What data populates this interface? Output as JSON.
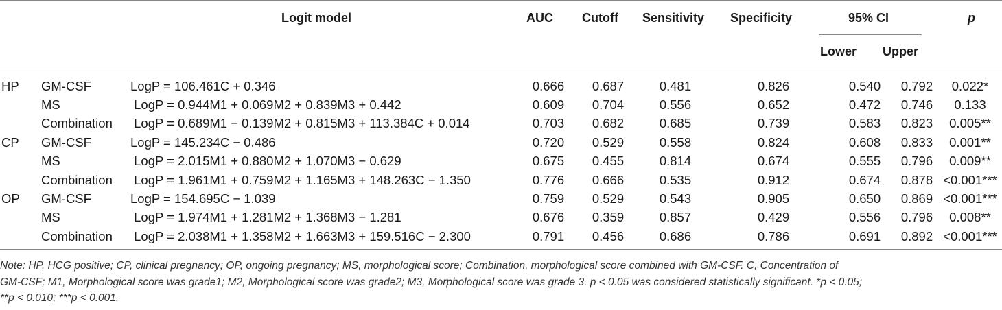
{
  "headers": {
    "logit_model": "Logit model",
    "auc": "AUC",
    "cutoff": "Cutoff",
    "sensitivity": "Sensitivity",
    "specificity": "Specificity",
    "ci": "95% CI",
    "lower": "Lower",
    "upper": "Upper",
    "p": "p"
  },
  "rows": [
    {
      "group": "HP",
      "type": "GM-CSF",
      "model": "LogP = 106.461C + 0.346",
      "auc": "0.666",
      "cutoff": "0.687",
      "sensitivity": "0.481",
      "specificity": "0.826",
      "lower": "0.540",
      "upper": "0.792",
      "p": "0.022*"
    },
    {
      "group": "",
      "type": "MS",
      "model": " LogP = 0.944M1 + 0.069M2 + 0.839M3 + 0.442",
      "auc": "0.609",
      "cutoff": "0.704",
      "sensitivity": "0.556",
      "specificity": "0.652",
      "lower": "0.472",
      "upper": "0.746",
      "p": "0.133"
    },
    {
      "group": "",
      "type": "Combination",
      "model": " LogP = 0.689M1 − 0.139M2 + 0.815M3 + 113.384C + 0.014",
      "auc": "0.703",
      "cutoff": "0.682",
      "sensitivity": "0.685",
      "specificity": "0.739",
      "lower": "0.583",
      "upper": "0.823",
      "p": "0.005**"
    },
    {
      "group": "CP",
      "type": "GM-CSF",
      "model": "LogP = 145.234C − 0.486",
      "auc": "0.720",
      "cutoff": "0.529",
      "sensitivity": "0.558",
      "specificity": "0.824",
      "lower": "0.608",
      "upper": "0.833",
      "p": "0.001**"
    },
    {
      "group": "",
      "type": "MS",
      "model": " LogP = 2.015M1 + 0.880M2 + 1.070M3 − 0.629",
      "auc": "0.675",
      "cutoff": "0.455",
      "sensitivity": "0.814",
      "specificity": "0.674",
      "lower": "0.555",
      "upper": "0.796",
      "p": "0.009**"
    },
    {
      "group": "",
      "type": "Combination",
      "model": " LogP = 1.961M1 + 0.759M2 + 1.165M3 + 148.263C − 1.350",
      "auc": "0.776",
      "cutoff": "0.666",
      "sensitivity": "0.535",
      "specificity": "0.912",
      "lower": "0.674",
      "upper": "0.878",
      "p": "<0.001***"
    },
    {
      "group": "OP",
      "type": "GM-CSF",
      "model": "LogP = 154.695C − 1.039",
      "auc": "0.759",
      "cutoff": "0.529",
      "sensitivity": "0.543",
      "specificity": "0.905",
      "lower": "0.650",
      "upper": "0.869",
      "p": "<0.001***"
    },
    {
      "group": "",
      "type": "MS",
      "model": " LogP = 1.974M1 + 1.281M2 + 1.368M3 − 1.281",
      "auc": "0.676",
      "cutoff": "0.359",
      "sensitivity": "0.857",
      "specificity": "0.429",
      "lower": "0.556",
      "upper": "0.796",
      "p": "0.008**"
    },
    {
      "group": "",
      "type": "Combination",
      "model": " LogP = 2.038M1 + 1.358M2 + 1.663M3 + 159.516C − 2.300",
      "auc": "0.791",
      "cutoff": "0.456",
      "sensitivity": "0.686",
      "specificity": "0.786",
      "lower": "0.691",
      "upper": "0.892",
      "p": "<0.001***"
    }
  ],
  "note": {
    "line1": "Note: HP, HCG positive; CP, clinical pregnancy; OP, ongoing pregnancy; MS, morphological score; Combination, morphological score combined with GM-CSF. C, Concentration of",
    "line2": "GM-CSF; M1, Morphological score was grade1; M2, Morphological score was grade2; M3, Morphological score was grade 3. p < 0.05 was considered statistically significant. *p < 0.05;",
    "line3": "**p < 0.010; ***p < 0.001."
  }
}
